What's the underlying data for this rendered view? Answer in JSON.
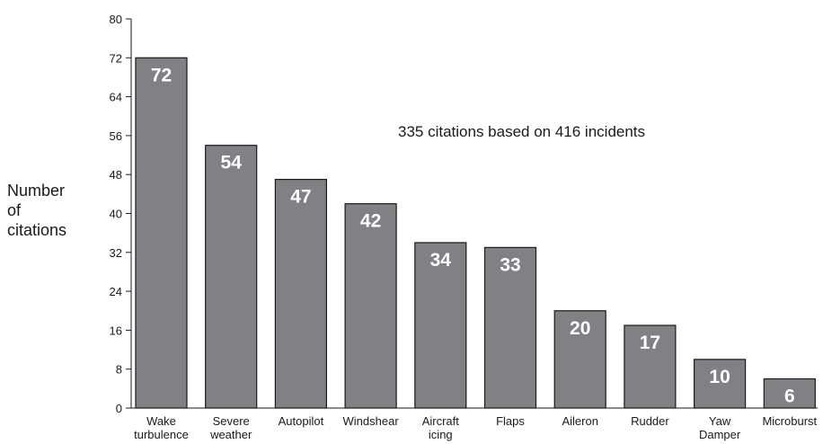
{
  "chart_data": {
    "type": "bar",
    "title": "",
    "xlabel": "",
    "ylabel": [
      "Number",
      "of",
      "citations"
    ],
    "ylim": [
      0,
      80
    ],
    "yticks": [
      0,
      8,
      16,
      24,
      32,
      40,
      48,
      56,
      64,
      72,
      80
    ],
    "categories": [
      [
        "Wake",
        "turbulence"
      ],
      [
        "Severe",
        "weather"
      ],
      [
        "Autopilot"
      ],
      [
        "Windshear"
      ],
      [
        "Aircraft",
        "icing"
      ],
      [
        "Flaps"
      ],
      [
        "Aileron"
      ],
      [
        "Rudder"
      ],
      [
        "Yaw",
        "Damper"
      ],
      [
        "Microburst"
      ]
    ],
    "values": [
      72,
      54,
      47,
      42,
      34,
      33,
      20,
      17,
      10,
      6
    ],
    "annotation": "335 citations based on 416 incidents",
    "grid": false,
    "legend": "none",
    "colors": {
      "bar": "#808085",
      "bar_outline": "#1a1a1a",
      "label": "#ffffff",
      "axis": "#1a1a1a"
    }
  }
}
